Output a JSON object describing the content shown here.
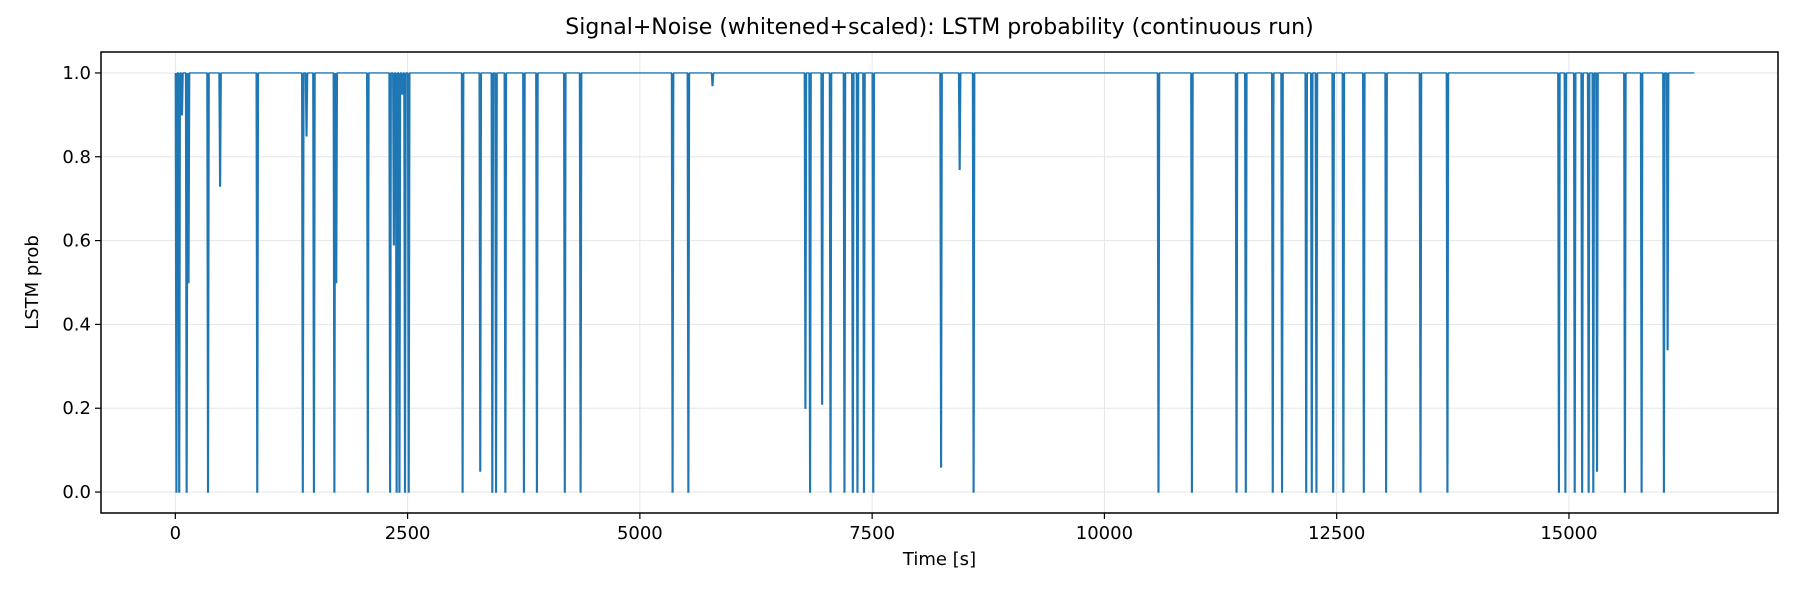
{
  "chart_data": {
    "type": "line",
    "title": "Signal+Noise (whitened+scaled): LSTM probability (continuous run)",
    "xlabel": "Time [s]",
    "ylabel": "LSTM prob",
    "xlim": [
      -800,
      17250
    ],
    "ylim": [
      -0.05,
      1.05
    ],
    "xticks": [
      0,
      2500,
      5000,
      7500,
      10000,
      12500,
      15000
    ],
    "xtick_labels": [
      "0",
      "2500",
      "5000",
      "7500",
      "10000",
      "12500",
      "15000"
    ],
    "yticks": [
      0.0,
      0.2,
      0.4,
      0.6,
      0.8,
      1.0
    ],
    "ytick_labels": [
      "0.0",
      "0.2",
      "0.4",
      "0.6",
      "0.8",
      "1.0"
    ],
    "grid": true,
    "legend": "none",
    "colors": {
      "series": "#1f77b4",
      "grid": "#e6e6e6",
      "axes": "#000000"
    },
    "series": [
      {
        "x_start": 0,
        "x_end": 16350,
        "baseline": 1.0,
        "events": [
          [
            0,
            0.0
          ],
          [
            30,
            0.0
          ],
          [
            60,
            0.9
          ],
          [
            110,
            0.0
          ],
          [
            130,
            0.5
          ],
          [
            340,
            0.0
          ],
          [
            470,
            0.73
          ],
          [
            870,
            0.0
          ],
          [
            1360,
            0.0
          ],
          [
            1400,
            0.85
          ],
          [
            1480,
            0.0
          ],
          [
            1700,
            0.0
          ],
          [
            1720,
            0.5
          ],
          [
            2060,
            0.0
          ],
          [
            2300,
            0.0
          ],
          [
            2340,
            0.59
          ],
          [
            2370,
            0.0
          ],
          [
            2400,
            0.0
          ],
          [
            2430,
            0.95
          ],
          [
            2460,
            0.0
          ],
          [
            2500,
            0.0
          ],
          [
            3080,
            0.0
          ],
          [
            3270,
            0.05
          ],
          [
            3400,
            0.0
          ],
          [
            3440,
            0.0
          ],
          [
            3540,
            0.0
          ],
          [
            3740,
            0.0
          ],
          [
            3880,
            0.0
          ],
          [
            4180,
            0.0
          ],
          [
            4350,
            0.0
          ],
          [
            5340,
            0.0
          ],
          [
            5510,
            0.0
          ],
          [
            5770,
            0.97
          ],
          [
            6770,
            0.2
          ],
          [
            6820,
            0.0
          ],
          [
            6950,
            0.21
          ],
          [
            7040,
            0.0
          ],
          [
            7190,
            0.0
          ],
          [
            7280,
            0.0
          ],
          [
            7330,
            0.0
          ],
          [
            7400,
            0.0
          ],
          [
            7500,
            0.0
          ],
          [
            8230,
            0.06
          ],
          [
            8430,
            0.77
          ],
          [
            8580,
            0.0
          ],
          [
            10570,
            0.0
          ],
          [
            10930,
            0.0
          ],
          [
            11410,
            0.0
          ],
          [
            11510,
            0.0
          ],
          [
            11800,
            0.0
          ],
          [
            11900,
            0.0
          ],
          [
            12160,
            0.0
          ],
          [
            12220,
            0.0
          ],
          [
            12270,
            0.0
          ],
          [
            12450,
            0.0
          ],
          [
            12560,
            0.0
          ],
          [
            12780,
            0.0
          ],
          [
            13020,
            0.0
          ],
          [
            13390,
            0.0
          ],
          [
            13680,
            0.0
          ],
          [
            14880,
            0.0
          ],
          [
            14950,
            0.0
          ],
          [
            15050,
            0.0
          ],
          [
            15130,
            0.0
          ],
          [
            15200,
            0.0
          ],
          [
            15250,
            0.0
          ],
          [
            15290,
            0.05
          ],
          [
            15590,
            0.0
          ],
          [
            15770,
            0.0
          ],
          [
            16010,
            0.0
          ],
          [
            16050,
            0.34
          ]
        ]
      }
    ]
  }
}
